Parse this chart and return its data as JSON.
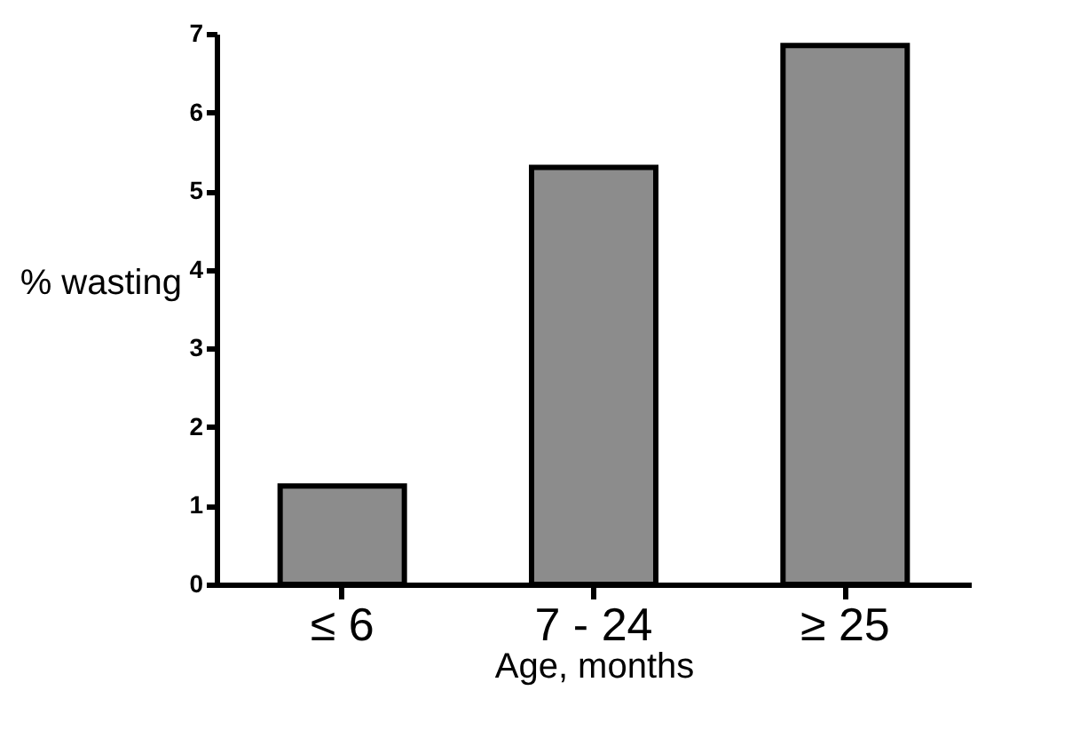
{
  "chart_data": {
    "type": "bar",
    "categories": [
      "≤ 6",
      "7 - 24",
      "≥ 25"
    ],
    "values": [
      1.25,
      5.3,
      6.85
    ],
    "color": "#8c8c8c",
    "xlabel": "Age, months",
    "ylabel": "% wasting",
    "ylim": [
      0,
      7
    ],
    "yticks": [
      0,
      1,
      2,
      3,
      4,
      5,
      6,
      7
    ],
    "grid": false
  }
}
